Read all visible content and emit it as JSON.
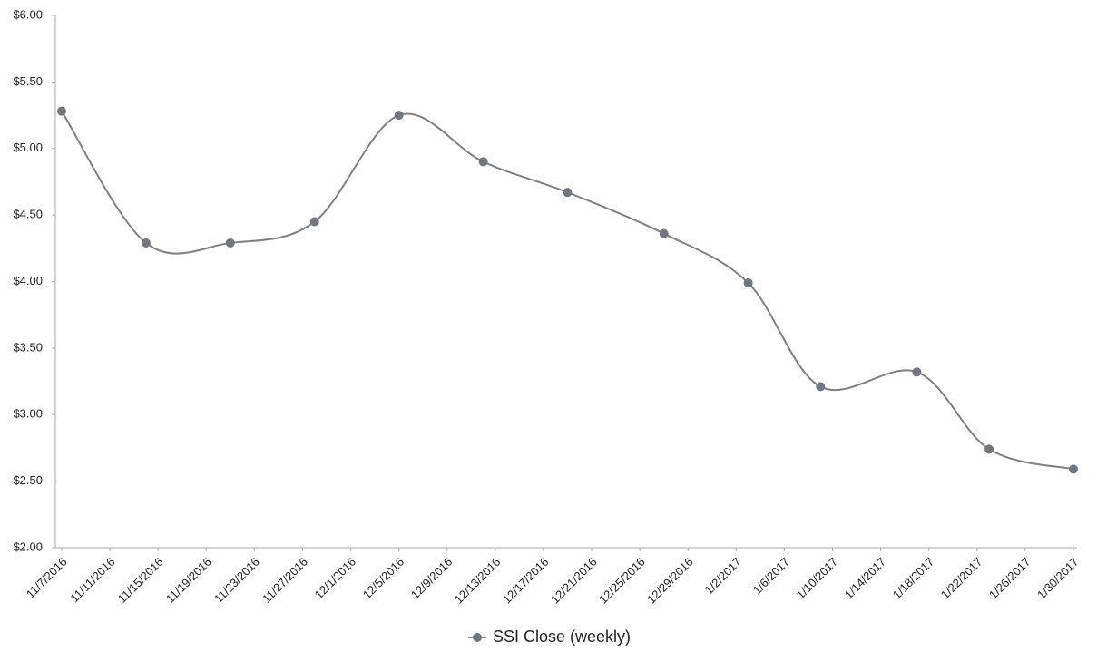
{
  "chart_data": {
    "type": "line",
    "x": [
      "11/7/2016",
      "11/14/2016",
      "11/21/2016",
      "11/28/2016",
      "12/5/2016",
      "12/12/2016",
      "12/19/2016",
      "12/27/2016",
      "1/3/2017",
      "1/9/2017",
      "1/17/2017",
      "1/23/2017",
      "1/30/2017"
    ],
    "series": [
      {
        "name": "SSI Close (weekly)",
        "color": "#808080",
        "marker_color": "#6f7780",
        "values": [
          5.28,
          4.29,
          4.29,
          4.45,
          5.25,
          4.9,
          4.67,
          4.36,
          3.99,
          3.21,
          3.32,
          2.74,
          2.59
        ]
      }
    ],
    "xlim": [
      "11/7/2016",
      "1/30/2017"
    ],
    "xticks": [
      "11/7/2016",
      "11/11/2016",
      "11/15/2016",
      "11/19/2016",
      "11/23/2016",
      "11/27/2016",
      "12/1/2016",
      "12/5/2016",
      "12/9/2016",
      "12/13/2016",
      "12/17/2016",
      "12/21/2016",
      "12/25/2016",
      "12/29/2016",
      "1/2/2017",
      "1/6/2017",
      "1/10/2017",
      "1/14/2017",
      "1/18/2017",
      "1/22/2017",
      "1/26/2017",
      "1/30/2017"
    ],
    "ylim": [
      2,
      6
    ],
    "yticks": [
      {
        "value": 2,
        "label": "$2.00"
      },
      {
        "value": 2.5,
        "label": "$2.50"
      },
      {
        "value": 3,
        "label": "$3.00"
      },
      {
        "value": 3.5,
        "label": "$3.50"
      },
      {
        "value": 4,
        "label": "$4.00"
      },
      {
        "value": 4.5,
        "label": "$4.50"
      },
      {
        "value": 5,
        "label": "$5.00"
      },
      {
        "value": 5.5,
        "label": "$5.50"
      },
      {
        "value": 6,
        "label": "$6.00"
      }
    ],
    "smooth": true,
    "legend": "bottom"
  }
}
